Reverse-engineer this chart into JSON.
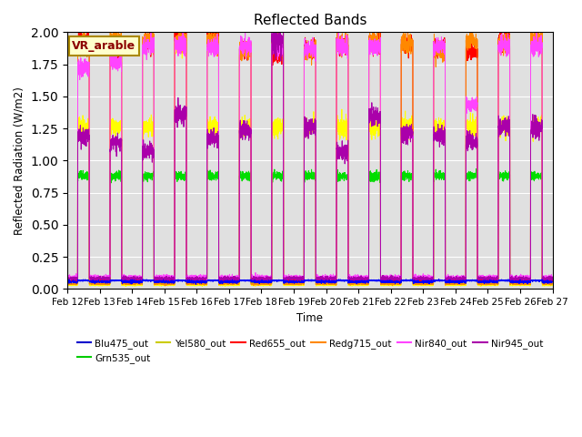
{
  "title": "Reflected Bands",
  "ylabel": "Reflected Radiation (W/m2)",
  "xlabel": "Time",
  "annotation": "VR_arable",
  "ylim": [
    0,
    2.0
  ],
  "date_labels": [
    "Feb 12",
    "Feb 13",
    "Feb 14",
    "Feb 15",
    "Feb 16",
    "Feb 17",
    "Feb 18",
    "Feb 19",
    "Feb 20",
    "Feb 21",
    "Feb 22",
    "Feb 23",
    "Feb 24",
    "Feb 25",
    "Feb 26",
    "Feb 27"
  ],
  "series": {
    "Blu475_out": {
      "color": "#0000ff"
    },
    "Grn535_out": {
      "color": "#00dd00"
    },
    "Yel580_out": {
      "color": "#ffff00"
    },
    "Red655_out": {
      "color": "#ff0000"
    },
    "Redg715_out": {
      "color": "#ff8800"
    },
    "Nir840_out": {
      "color": "#ff44ff"
    },
    "Nir945_out": {
      "color": "#aa00aa"
    }
  },
  "background_color": "#e0e0e0",
  "legend_colors": {
    "Blu475_out": "#0000cc",
    "Grn535_out": "#00cc00",
    "Yel580_out": "#cccc00",
    "Red655_out": "#ff0000",
    "Redg715_out": "#ff8800",
    "Nir840_out": "#ff44ff",
    "Nir945_out": "#aa00aa"
  }
}
